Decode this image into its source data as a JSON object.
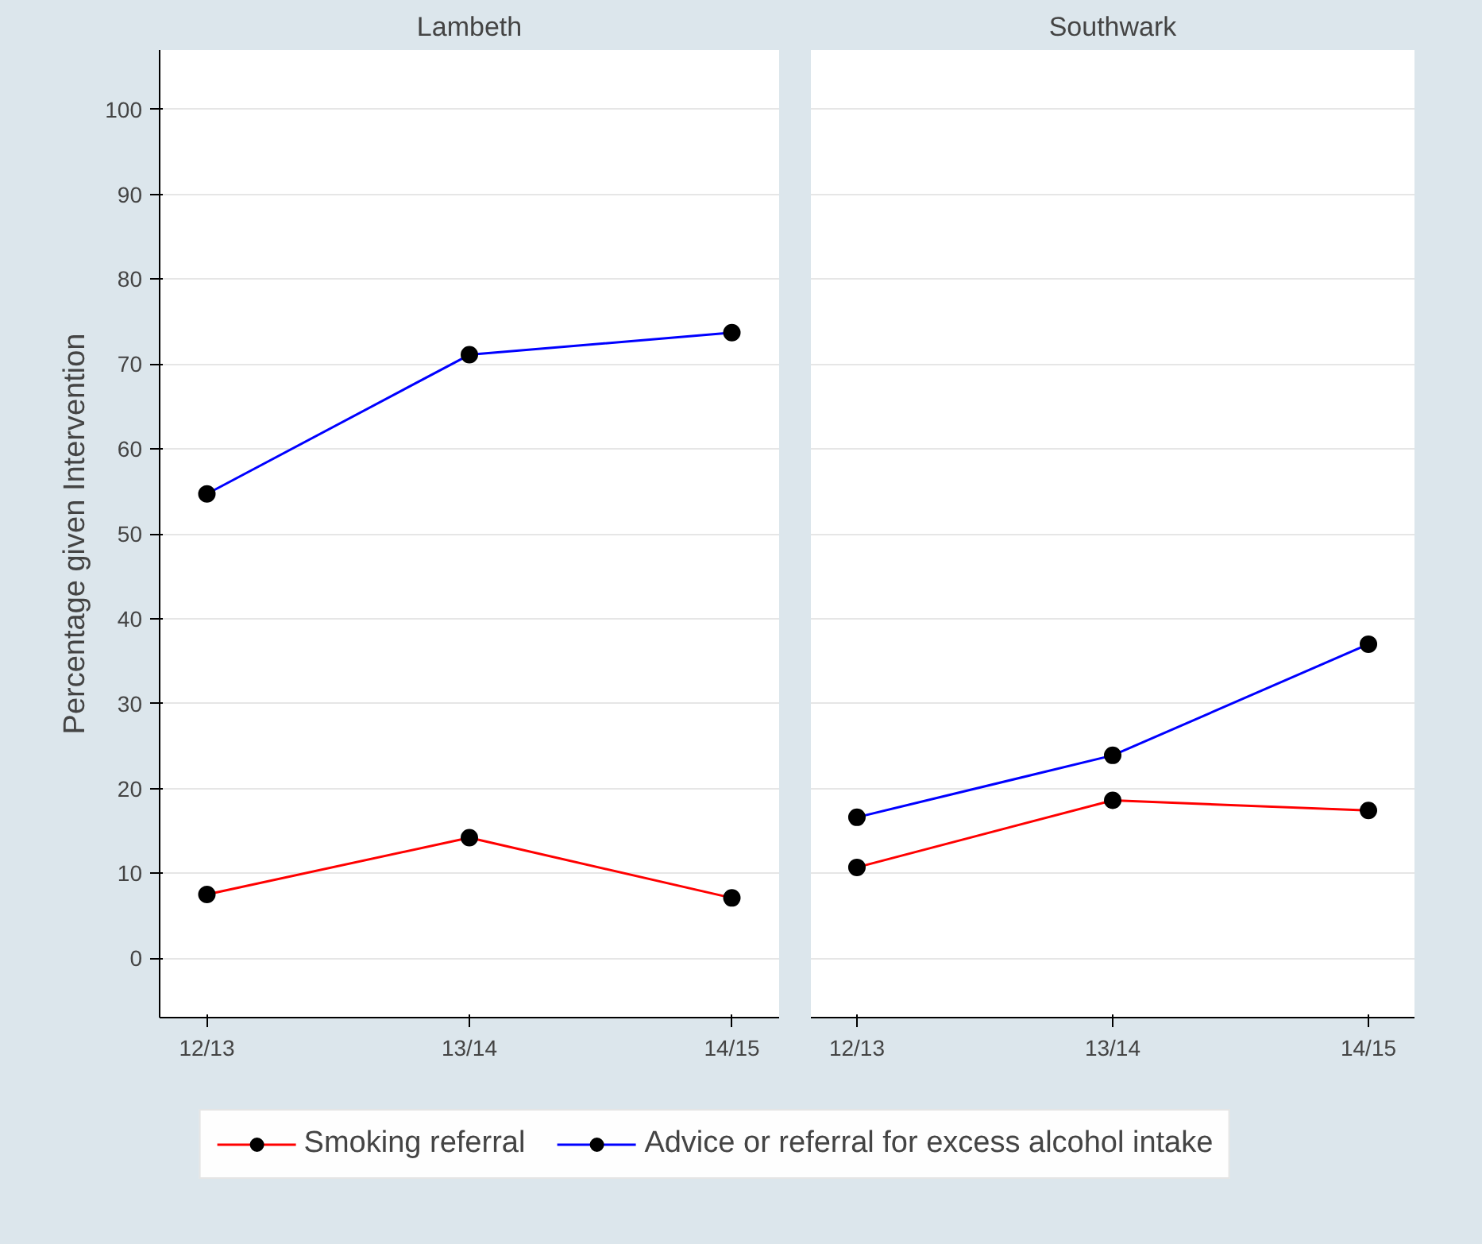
{
  "chart_data": [
    {
      "type": "line",
      "title": "Lambeth",
      "ylabel": "Percentage given Intervention",
      "categories": [
        "12/13",
        "13/14",
        "14/15"
      ],
      "series": [
        {
          "name": "Smoking referral",
          "color": "#ff0000",
          "values": [
            7.5,
            14.2,
            7.1
          ]
        },
        {
          "name": "Advice or referral for excess alcohol intake",
          "color": "#0000ff",
          "values": [
            54.7,
            71.1,
            73.7
          ]
        }
      ],
      "ylim": [
        -7,
        107
      ],
      "yticks": [
        0,
        10,
        20,
        30,
        40,
        50,
        60,
        70,
        80,
        90,
        100
      ],
      "grid": "y",
      "marker": "circle",
      "legend": "bottom"
    },
    {
      "type": "line",
      "title": "Southwark",
      "categories": [
        "12/13",
        "13/14",
        "14/15"
      ],
      "series": [
        {
          "color": "#ff0000",
          "values": [
            10.7,
            18.6,
            17.4
          ]
        },
        {
          "color": "#0000ff",
          "values": [
            16.6,
            23.9,
            37.0
          ]
        }
      ],
      "ylim": [
        -7,
        107
      ],
      "yticks": [
        0,
        10,
        20,
        30,
        40,
        50,
        60,
        70,
        80,
        90,
        100
      ],
      "grid": "y",
      "marker": "circle",
      "tick_labels": "x"
    }
  ]
}
